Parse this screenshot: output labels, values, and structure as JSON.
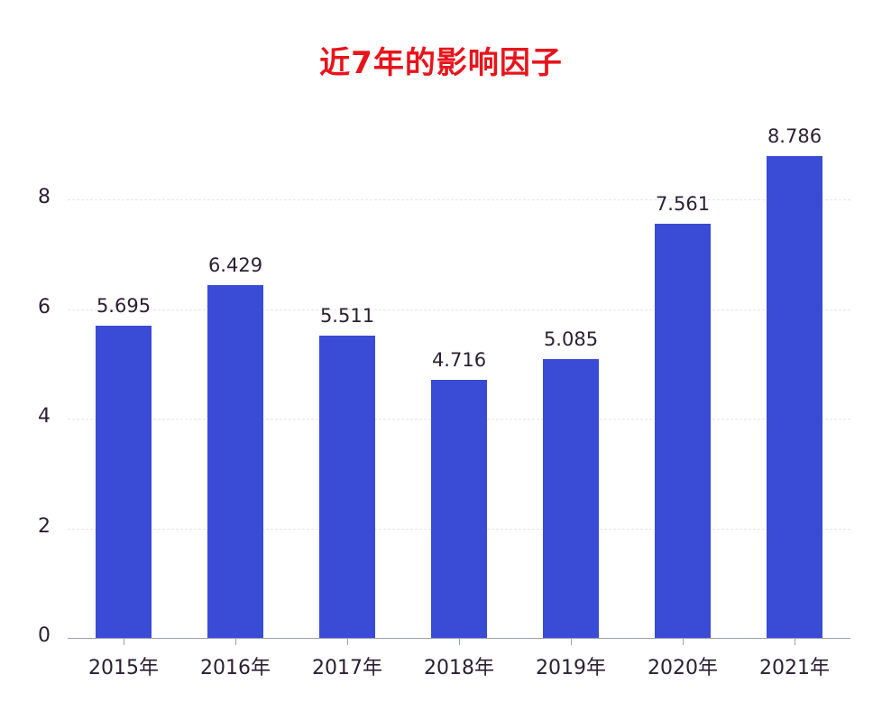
{
  "title": "近7年的影响因子",
  "colors": {
    "title": "#e8141b",
    "bar": "#3a4bd6",
    "text": "#2a1f33",
    "axis": "#9aa0b4",
    "grid": "#e4e6ec"
  },
  "y_axis": {
    "ticks": [
      "0",
      "2",
      "4",
      "6",
      "8"
    ]
  },
  "x_axis": {
    "labels": [
      "2015年",
      "2016年",
      "2017年",
      "2018年",
      "2019年",
      "2020年",
      "2021年"
    ]
  },
  "bars": [
    {
      "label": "2015年",
      "value": "5.695"
    },
    {
      "label": "2016年",
      "value": "6.429"
    },
    {
      "label": "2017年",
      "value": "5.511"
    },
    {
      "label": "2018年",
      "value": "4.716"
    },
    {
      "label": "2019年",
      "value": "5.085"
    },
    {
      "label": "2020年",
      "value": "7.561"
    },
    {
      "label": "2021年",
      "value": "8.786"
    }
  ],
  "chart_data": {
    "type": "bar",
    "title": "近7年的影响因子",
    "categories": [
      "2015年",
      "2016年",
      "2017年",
      "2018年",
      "2019年",
      "2020年",
      "2021年"
    ],
    "values": [
      5.695,
      6.429,
      5.511,
      4.716,
      5.085,
      7.561,
      8.786
    ],
    "xlabel": "",
    "ylabel": "",
    "ylim": [
      0,
      9
    ],
    "yticks": [
      0,
      2,
      4,
      6,
      8
    ],
    "grid": "horizontal dashed",
    "legend": "none",
    "data_labels": true
  }
}
